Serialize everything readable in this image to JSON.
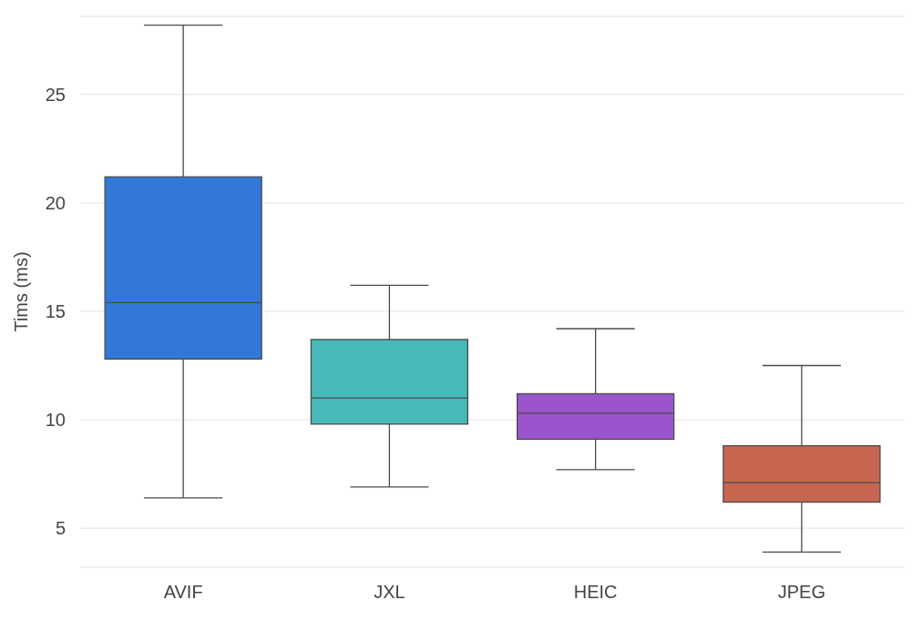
{
  "chart_data": {
    "type": "box",
    "ylabel": "Tims (ms)",
    "categories": [
      "AVIF",
      "JXL",
      "HEIC",
      "JPEG"
    ],
    "colors": [
      "#3279d7",
      "#47b9b9",
      "#9b55cc",
      "#c76650"
    ],
    "boxes": [
      {
        "low": 6.4,
        "q1": 12.8,
        "median": 15.4,
        "q3": 21.2,
        "high": 28.2
      },
      {
        "low": 6.9,
        "q1": 9.8,
        "median": 11.0,
        "q3": 13.7,
        "high": 16.2
      },
      {
        "low": 7.7,
        "q1": 9.1,
        "median": 10.3,
        "q3": 11.2,
        "high": 14.2
      },
      {
        "low": 3.9,
        "q1": 6.2,
        "median": 7.1,
        "q3": 8.8,
        "high": 12.5
      }
    ],
    "ylim": [
      3.2,
      28.6
    ],
    "yticks": [
      5,
      10,
      15,
      20,
      25
    ],
    "grid": "y"
  }
}
